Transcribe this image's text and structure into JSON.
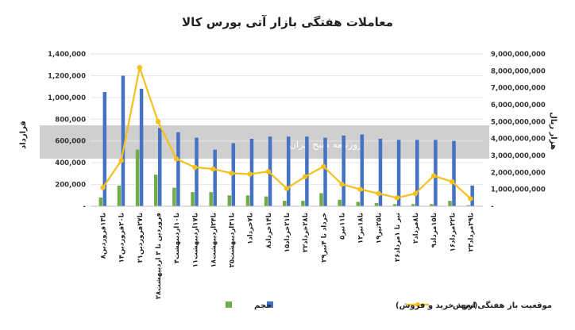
{
  "chart_data": {
    "type": "bar",
    "title": "معاملات هفتگی بازار آتی بورس کالا",
    "ylabel_left": "قرارداد",
    "ylabel_right": "هزار ریال",
    "watermark": "روزنامه صبح ایران",
    "ylim_left": [
      0,
      1400000
    ],
    "ylim_right": [
      0,
      9000000000
    ],
    "left_ticks": [
      "-",
      "200,000",
      "400,000",
      "600,000",
      "800,000",
      "1,000,000",
      "1,200,000",
      "1,400,000"
    ],
    "right_ticks": [
      "-",
      "1,000,000,000",
      "2,000,000,000",
      "3,000,000,000",
      "4,000,000,000",
      "5,000,000,000",
      "6,000,000,000",
      "7,000,000,000",
      "8,000,000,000",
      "9,000,000,000"
    ],
    "categories": [
      "۸تا۱۳فروردین",
      "۱۴تا۲۰فروردین",
      "۲۱تا۲۷فروردین",
      "۲۸فروردین تا ۳ اردیبهشت",
      "۴تا۱۰اردیبهشت",
      "۱۱تا۱۷اردیبهشت",
      "۱۸تا۲۴اردیبهشت",
      "۲۵تا۳۱اردیبهشت",
      "۱تا۷خرداد",
      "۸تا۱۴خرداد",
      "۱۵تا۲۱خرداد",
      "۲۲تا۲۸خرداد",
      "۲۹خرداد تا ۴تیر",
      "۵تا۱۱تیر",
      "۱۲تا۱۸تیر",
      "۱۹تا۲۵تیر",
      "۲۶تیر تا ۱مرداد",
      "۲تا۸مرداد",
      "۹تا۱۵مرداد",
      "۱۶تا۲۲مرداد",
      "۲۳تا۲۹مرداد"
    ],
    "legend": [
      "ارزش",
      "موقعیت باز هفتگی(تعهد خرید و فروش)",
      "حجم"
    ],
    "series": [
      {
        "name": "حجم",
        "type": "bar",
        "axis": "left",
        "color": "#70ad47",
        "values": [
          80000,
          190000,
          520000,
          290000,
          170000,
          130000,
          130000,
          100000,
          100000,
          90000,
          50000,
          50000,
          120000,
          60000,
          40000,
          30000,
          20000,
          20000,
          20000,
          50000,
          10000
        ]
      },
      {
        "name": "موقعیت باز هفتگی(تعهد خرید و فروش)",
        "type": "bar",
        "axis": "left",
        "color": "#4472c4",
        "values": [
          1050000,
          1200000,
          1080000,
          720000,
          680000,
          630000,
          520000,
          580000,
          620000,
          640000,
          640000,
          640000,
          630000,
          650000,
          660000,
          620000,
          610000,
          610000,
          610000,
          600000,
          190000
        ]
      },
      {
        "name": "ارزش",
        "type": "line",
        "axis": "right",
        "color": "#f6c01c",
        "values": [
          1100000000,
          2700000000,
          8200000000,
          5000000000,
          2800000000,
          2300000000,
          2200000000,
          1950000000,
          1900000000,
          2050000000,
          1050000000,
          1750000000,
          2350000000,
          1300000000,
          1000000000,
          750000000,
          500000000,
          750000000,
          1800000000,
          1450000000,
          450000000
        ]
      }
    ]
  }
}
